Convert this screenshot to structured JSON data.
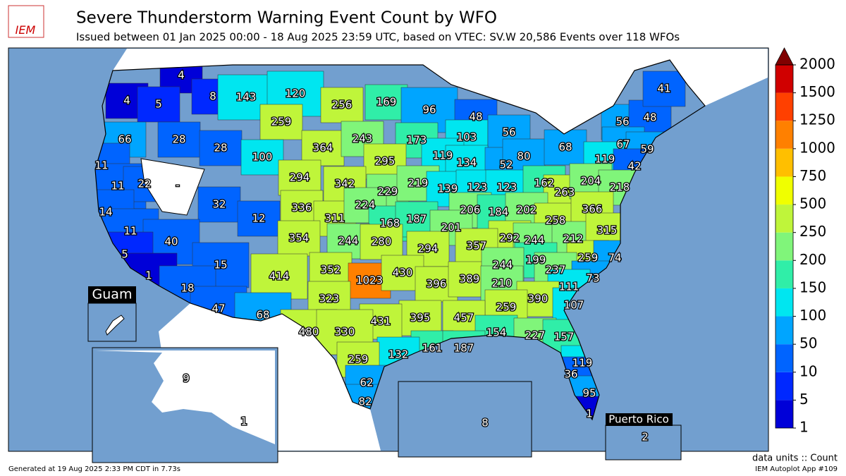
{
  "header": {
    "logo": "IEM",
    "title": "Severe Thunderstorm Warning Event Count by WFO",
    "subtitle": "Issued between 01 Jan 2025 00:00 - 18 Aug 2025 23:59 UTC, based on VTEC: SV.W   20,586 Events over 118 WFOs"
  },
  "map": {
    "counts": [
      4,
      8,
      4,
      5,
      143,
      120,
      256,
      169,
      96,
      48,
      66,
      28,
      28,
      259,
      364,
      243,
      173,
      103,
      56,
      11,
      100,
      295,
      119,
      134,
      52,
      80,
      68,
      56,
      48,
      41,
      67,
      59,
      119,
      42,
      11,
      22,
      32,
      294,
      342,
      229,
      219,
      139,
      123,
      123,
      162,
      263,
      204,
      218,
      14,
      336,
      311,
      224,
      12,
      168,
      187,
      206,
      184,
      202,
      258,
      366,
      11,
      40,
      354,
      244,
      280,
      201,
      292,
      244,
      212,
      315,
      5,
      15,
      294,
      357,
      199,
      259,
      74,
      1,
      414,
      352,
      1023,
      430,
      396,
      389,
      244,
      210,
      237,
      73,
      18,
      323,
      111,
      390,
      107,
      259,
      47,
      68,
      395,
      457,
      431,
      480,
      330,
      154,
      227,
      157,
      161,
      187,
      132,
      259,
      119,
      36,
      62,
      95,
      82,
      1,
      9,
      1,
      8,
      2
    ],
    "no_data_label": "-",
    "inset_labels": {
      "guam": "Guam",
      "puerto_rico": "Puerto Rico"
    }
  },
  "colorbar": {
    "levels": [
      1,
      5,
      10,
      50,
      100,
      150,
      200,
      250,
      500,
      750,
      1000,
      1250,
      1500,
      2000
    ],
    "colors": [
      "#0000d8",
      "#0028ff",
      "#0064ff",
      "#00a5ff",
      "#00e6f0",
      "#30eea8",
      "#80f57a",
      "#bff53a",
      "#f0ff00",
      "#ffbf00",
      "#ff8000",
      "#ff4000",
      "#d00000"
    ],
    "over_color": "#800000"
  },
  "footer": {
    "units": "data units :: Count",
    "generated": "Generated at 19 Aug 2025 2:33 PM CDT in 7.73s",
    "app": "IEM Autoplot App #109"
  }
}
